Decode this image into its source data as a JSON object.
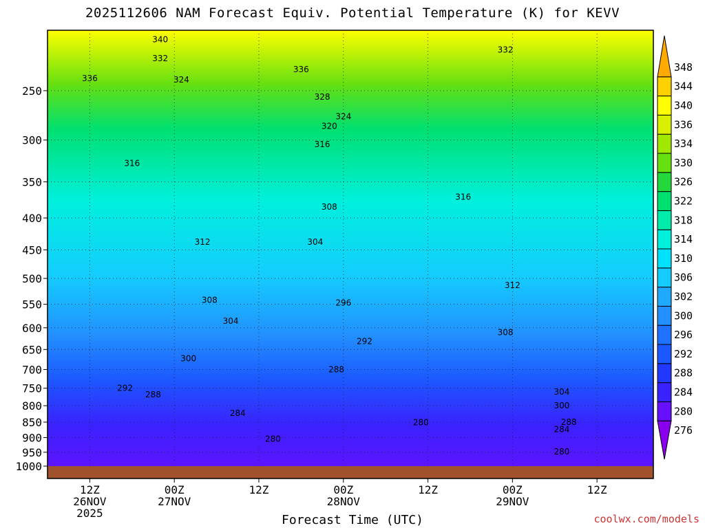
{
  "title": "2025112606 NAM Forecast Equiv. Potential Temperature (K) for KEVV",
  "credit": "coolwx.com/models",
  "chart_data": {
    "type": "heatmap",
    "title": "2025112606 NAM Forecast Equiv. Potential Temperature (K) for KEVV",
    "xlabel": "Forecast Time (UTC)",
    "ylabel": "",
    "y_scale": "pressure (log), inverted",
    "ylim": [
      1000,
      200
    ],
    "y_ticks": [
      250,
      300,
      350,
      400,
      450,
      500,
      550,
      600,
      650,
      700,
      750,
      800,
      850,
      900,
      950,
      1000
    ],
    "xlim": [
      "2025-11-26 06Z",
      "2025-11-29 20Z"
    ],
    "x_ticks": [
      {
        "time": "2025-11-26 12Z",
        "lines": [
          "12Z",
          "26NOV",
          "2025"
        ]
      },
      {
        "time": "2025-11-27 00Z",
        "lines": [
          "00Z",
          "27NOV"
        ]
      },
      {
        "time": "2025-11-27 12Z",
        "lines": [
          "12Z"
        ]
      },
      {
        "time": "2025-11-28 00Z",
        "lines": [
          "00Z",
          "28NOV"
        ]
      },
      {
        "time": "2025-11-28 12Z",
        "lines": [
          "12Z"
        ]
      },
      {
        "time": "2025-11-29 00Z",
        "lines": [
          "00Z",
          "29NOV"
        ]
      },
      {
        "time": "2025-11-29 12Z",
        "lines": [
          "12Z"
        ]
      }
    ],
    "grid": "dotted, at every x and y tick",
    "colorbar": {
      "placement": "right",
      "levels": [
        276,
        280,
        284,
        288,
        292,
        296,
        300,
        302,
        306,
        310,
        314,
        318,
        322,
        326,
        330,
        334,
        336,
        340,
        344,
        348
      ],
      "colors": [
        "#8800ee",
        "#6610ff",
        "#3a22ff",
        "#2038ff",
        "#1c58ff",
        "#1e72ff",
        "#2290ff",
        "#20aaff",
        "#14ccff",
        "#00e0ff",
        "#00f0dd",
        "#00ecaa",
        "#00e070",
        "#22d83c",
        "#66e010",
        "#a0e800",
        "#d8f000",
        "#ffff00",
        "#ffd000",
        "#ffaa00"
      ]
    },
    "contour_labels": [
      {
        "text": "340",
        "time": "2025-11-26 22Z",
        "p": 207
      },
      {
        "text": "332",
        "time": "2025-11-26 22Z",
        "p": 222
      },
      {
        "text": "336",
        "time": "2025-11-26 12Z",
        "p": 239
      },
      {
        "text": "324",
        "time": "2025-11-27 01Z",
        "p": 240
      },
      {
        "text": "336",
        "time": "2025-11-27 18Z",
        "p": 231
      },
      {
        "text": "328",
        "time": "2025-11-27 21Z",
        "p": 256
      },
      {
        "text": "332",
        "time": "2025-11-28 23Z",
        "p": 215
      },
      {
        "text": "324",
        "time": "2025-11-28 00Z",
        "p": 275
      },
      {
        "text": "320",
        "time": "2025-11-27 22Z",
        "p": 285
      },
      {
        "text": "316",
        "time": "2025-11-27 21Z",
        "p": 305
      },
      {
        "text": "316",
        "time": "2025-11-26 18Z",
        "p": 327
      },
      {
        "text": "316",
        "time": "2025-11-28 17Z",
        "p": 370
      },
      {
        "text": "308",
        "time": "2025-11-27 22Z",
        "p": 384
      },
      {
        "text": "312",
        "time": "2025-11-27 04Z",
        "p": 437
      },
      {
        "text": "304",
        "time": "2025-11-27 20Z",
        "p": 437
      },
      {
        "text": "312",
        "time": "2025-11-29 00Z",
        "p": 513
      },
      {
        "text": "308",
        "time": "2025-11-27 05Z",
        "p": 542
      },
      {
        "text": "296",
        "time": "2025-11-28 00Z",
        "p": 547
      },
      {
        "text": "304",
        "time": "2025-11-27 08Z",
        "p": 585
      },
      {
        "text": "308",
        "time": "2025-11-28 23Z",
        "p": 610
      },
      {
        "text": "292",
        "time": "2025-11-28 03Z",
        "p": 631
      },
      {
        "text": "300",
        "time": "2025-11-27 02Z",
        "p": 672
      },
      {
        "text": "288",
        "time": "2025-11-27 23Z",
        "p": 700
      },
      {
        "text": "292",
        "time": "2025-11-26 17Z",
        "p": 750
      },
      {
        "text": "288",
        "time": "2025-11-26 21Z",
        "p": 768
      },
      {
        "text": "304",
        "time": "2025-11-29 07Z",
        "p": 760
      },
      {
        "text": "300",
        "time": "2025-11-29 07Z",
        "p": 800
      },
      {
        "text": "284",
        "time": "2025-11-27 09Z",
        "p": 822
      },
      {
        "text": "288",
        "time": "2025-11-29 08Z",
        "p": 850
      },
      {
        "text": "280",
        "time": "2025-11-28 11Z",
        "p": 851
      },
      {
        "text": "284",
        "time": "2025-11-29 07Z",
        "p": 873
      },
      {
        "text": "280",
        "time": "2025-11-27 14Z",
        "p": 905
      },
      {
        "text": "280",
        "time": "2025-11-29 07Z",
        "p": 948
      }
    ]
  }
}
